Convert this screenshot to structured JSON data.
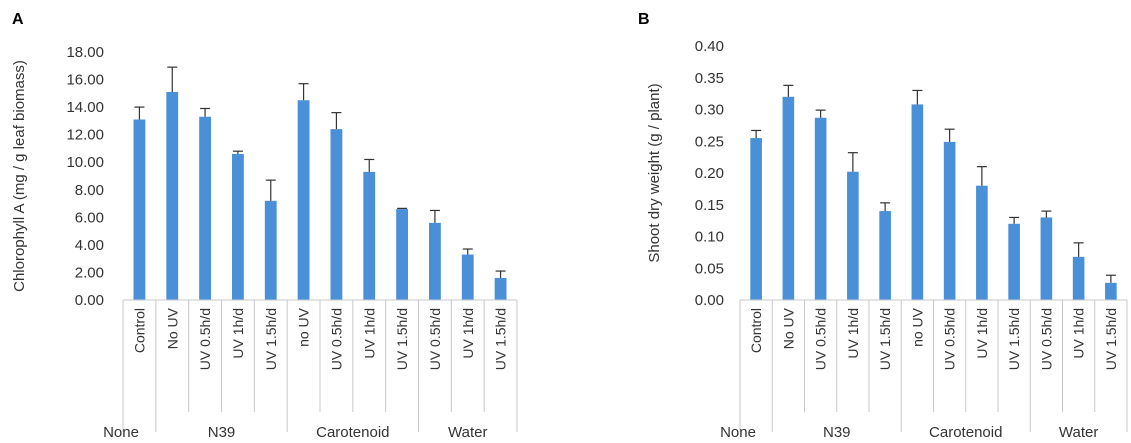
{
  "chart_data": [
    {
      "type": "bar",
      "panel_label": "A",
      "ylabel": "Chlorophyll A (mg / g leaf biomass)",
      "ylim": [
        0,
        18
      ],
      "yticks": [
        "0.00",
        "2.00",
        "4.00",
        "6.00",
        "8.00",
        "10.00",
        "12.00",
        "14.00",
        "16.00",
        "18.00"
      ],
      "color": "#4a90d9",
      "categories": [
        "Control",
        "No UV",
        "UV 0.5h/d",
        "UV 1h/d",
        "UV 1.5h/d",
        "no UV",
        "UV 0.5h/d",
        "UV 1h/d",
        "UV 1.5h/d",
        "UV 0.5h/d",
        "UV 1h/d",
        "UV 1.5h/d"
      ],
      "values": [
        13.1,
        15.1,
        13.3,
        10.6,
        7.2,
        14.5,
        12.4,
        9.3,
        6.6,
        5.6,
        3.3,
        1.6
      ],
      "errors": [
        0.9,
        1.8,
        0.6,
        0.2,
        1.5,
        1.2,
        1.2,
        0.9,
        0.05,
        0.9,
        0.4,
        0.5
      ],
      "groups": [
        {
          "label": "None",
          "start": 0,
          "end": 0
        },
        {
          "label": "N39",
          "start": 1,
          "end": 4
        },
        {
          "label": "Carotenoid",
          "start": 5,
          "end": 8
        },
        {
          "label": "Water",
          "start": 9,
          "end": 11
        }
      ]
    },
    {
      "type": "bar",
      "panel_label": "B",
      "ylabel": "Shoot dry weight (g / plant)",
      "ylim": [
        0,
        0.4
      ],
      "yticks": [
        "0.00",
        "0.05",
        "0.10",
        "0.15",
        "0.20",
        "0.25",
        "0.30",
        "0.35",
        "0.40"
      ],
      "color": "#4a90d9",
      "categories": [
        "Control",
        "No UV",
        "UV 0.5h/d",
        "UV 1h/d",
        "UV 1.5h/d",
        "no UV",
        "UV 0.5h/d",
        "UV 1h/d",
        "UV 1.5h/d",
        "UV 0.5h/d",
        "UV 1h/d",
        "UV 1.5h/d"
      ],
      "values": [
        0.255,
        0.32,
        0.287,
        0.202,
        0.14,
        0.308,
        0.249,
        0.18,
        0.12,
        0.13,
        0.068,
        0.027
      ],
      "errors": [
        0.012,
        0.018,
        0.012,
        0.03,
        0.013,
        0.022,
        0.02,
        0.03,
        0.01,
        0.01,
        0.022,
        0.012
      ],
      "groups": [
        {
          "label": "None",
          "start": 0,
          "end": 0
        },
        {
          "label": "N39",
          "start": 1,
          "end": 4
        },
        {
          "label": "Carotenoid",
          "start": 5,
          "end": 8
        },
        {
          "label": "Water",
          "start": 9,
          "end": 11
        }
      ]
    }
  ]
}
